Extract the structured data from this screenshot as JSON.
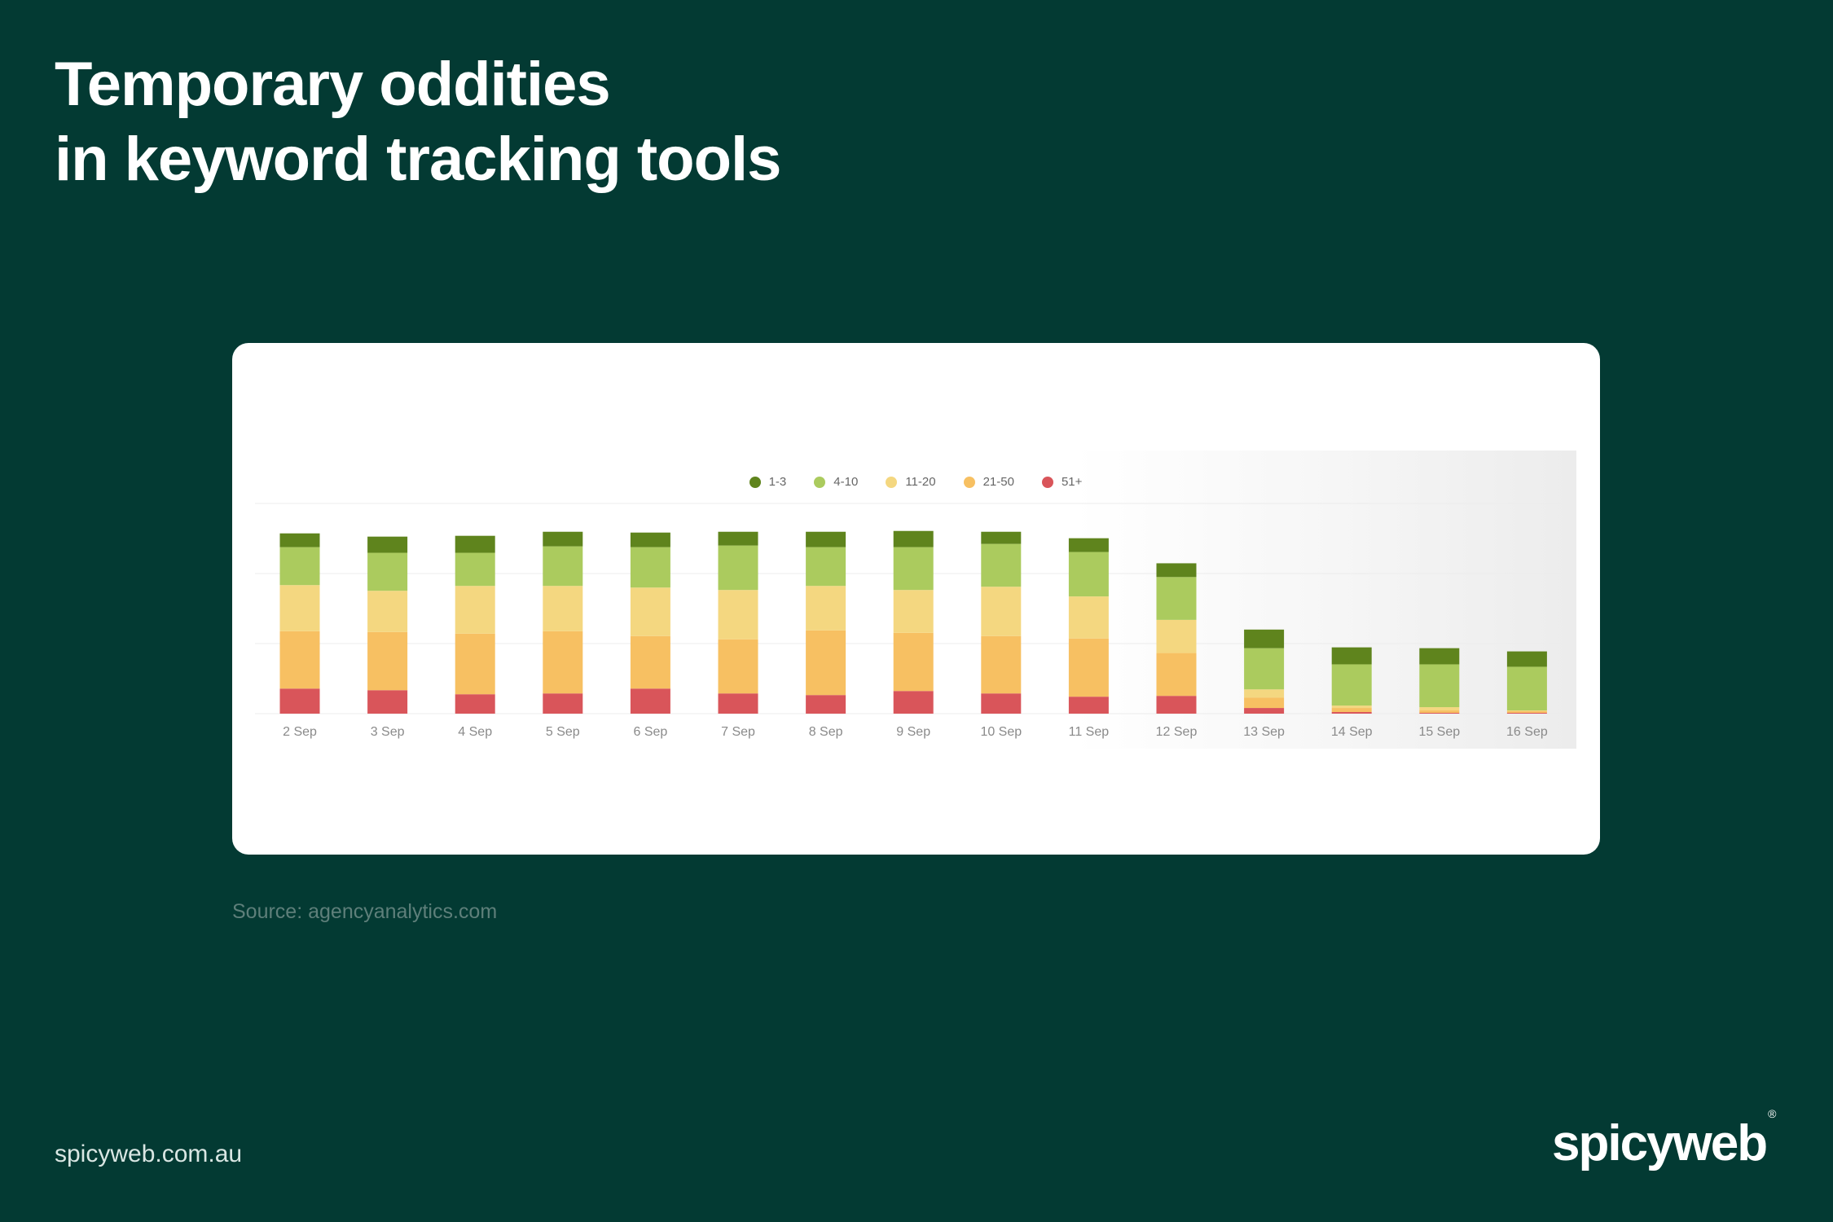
{
  "title": {
    "line1": "Temporary oddities",
    "line2": "in keyword tracking tools"
  },
  "source": "Source: agencyanalytics.com",
  "footer": {
    "url": "spicyweb.com.au",
    "brand": "spicyweb",
    "brand_mark": "®"
  },
  "chart_data": {
    "type": "bar",
    "stacked": true,
    "categories": [
      "2 Sep",
      "3 Sep",
      "4 Sep",
      "5 Sep",
      "6 Sep",
      "7 Sep",
      "8 Sep",
      "9 Sep",
      "10 Sep",
      "11 Sep",
      "12 Sep",
      "13 Sep",
      "14 Sep",
      "15 Sep",
      "16 Sep"
    ],
    "series": [
      {
        "name": "51+",
        "color": "#d9555a",
        "values": [
          31,
          29,
          24,
          25,
          31,
          25,
          23,
          28,
          25,
          21,
          22,
          7,
          2,
          1,
          1
        ]
      },
      {
        "name": "21-50",
        "color": "#f7c062",
        "values": [
          71,
          72,
          75,
          77,
          65,
          67,
          80,
          72,
          71,
          72,
          53,
          13,
          5,
          3,
          2
        ]
      },
      {
        "name": "11-20",
        "color": "#f4d780",
        "values": [
          57,
          51,
          59,
          56,
          60,
          61,
          55,
          53,
          61,
          52,
          41,
          10,
          3,
          4,
          1
        ]
      },
      {
        "name": "4-10",
        "color": "#abcb5e",
        "values": [
          47,
          47,
          41,
          49,
          50,
          55,
          48,
          53,
          53,
          55,
          53,
          51,
          51,
          53,
          54
        ]
      },
      {
        "name": "1-3",
        "color": "#5f841d",
        "values": [
          17,
          20,
          21,
          18,
          18,
          17,
          19,
          20,
          15,
          17,
          17,
          23,
          21,
          20,
          19
        ]
      }
    ],
    "ylim": [
      0,
      260
    ],
    "grid": true,
    "legend_position": "top-center",
    "title": "",
    "xlabel": "",
    "ylabel": ""
  }
}
